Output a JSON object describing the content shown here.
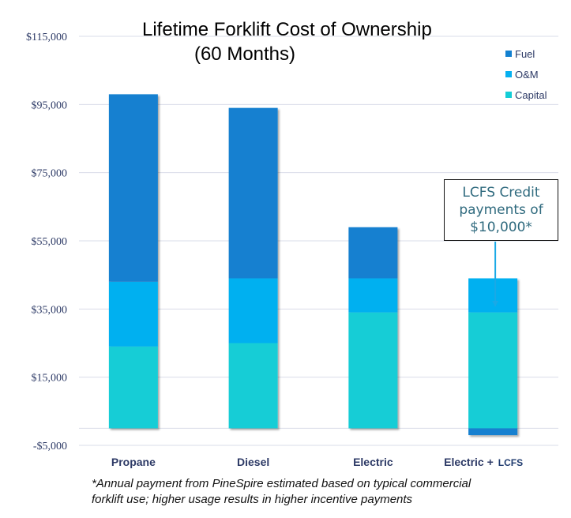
{
  "chart_data": {
    "type": "bar",
    "stacked": true,
    "title": "Lifetime Forklift Cost of Ownership",
    "subtitle": "(60 Months)",
    "xlabel": "",
    "ylabel": "",
    "categories": [
      "Propane",
      "Diesel",
      "Electric",
      "Electric + LCFS"
    ],
    "category_labels": [
      {
        "main": "Propane",
        "suffix": ""
      },
      {
        "main": "Diesel",
        "suffix": ""
      },
      {
        "main": "Electric",
        "suffix": ""
      },
      {
        "main": "Electric +",
        "suffix": "LCFS"
      }
    ],
    "series": [
      {
        "name": "Capital",
        "color": "#14cdd6",
        "values": [
          24000,
          25000,
          34000,
          34000
        ]
      },
      {
        "name": "O&M",
        "color": "#06b0f0",
        "values": [
          19000,
          19000,
          10000,
          10000
        ]
      },
      {
        "name": "Fuel",
        "color": "#1380d0",
        "values": [
          55000,
          50000,
          15000,
          -2000
        ]
      }
    ],
    "legend_order": [
      "Fuel",
      "O&M",
      "Capital"
    ],
    "legend_position": "top-right",
    "ylim": [
      -5000,
      115000
    ],
    "yticks": [
      -5000,
      15000,
      35000,
      55000,
      75000,
      95000,
      115000
    ],
    "ytick_labels": [
      "-$5,000",
      "$15,000",
      "$35,000",
      "$55,000",
      "$75,000",
      "$95,000",
      "$115,000"
    ],
    "grid": true,
    "annotation": {
      "lines": [
        "LCFS Credit",
        "payments of",
        "$10,000*"
      ],
      "target_category": "Electric + LCFS"
    }
  },
  "footnote": {
    "line1": "*Annual payment from PineSpire estimated based on typical commercial",
    "line2": "forklift use; higher usage results in higher incentive payments"
  },
  "colors": {
    "axis_text": "#2d3a66",
    "grid": "#d9dce8",
    "callout_text": "#2f6a7e",
    "arrow": "#1aa9e6"
  }
}
